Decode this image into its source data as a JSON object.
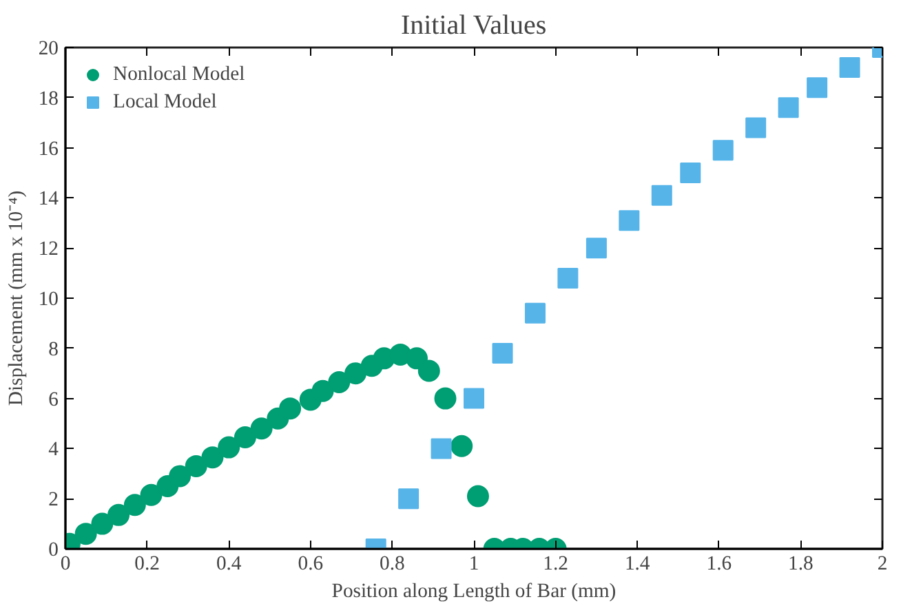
{
  "chart_data": {
    "type": "scatter",
    "title": "Initial Values",
    "xlabel": "Position along Length of Bar (mm)",
    "ylabel": "Displacement (mm x 10⁻⁴)",
    "series": [
      {
        "name": "Nonlocal Model",
        "color": "#009e73",
        "marker": "circle",
        "x": [
          0.01,
          0.05,
          0.09,
          0.13,
          0.17,
          0.21,
          0.25,
          0.28,
          0.32,
          0.36,
          0.4,
          0.44,
          0.48,
          0.52,
          0.55,
          0.6,
          0.63,
          0.67,
          0.71,
          0.75,
          0.78,
          0.82,
          0.86,
          0.89,
          0.93,
          0.97,
          1.01,
          1.05,
          1.09,
          1.12,
          1.16,
          1.2
        ],
        "values": [
          0.2,
          0.6,
          1.0,
          1.35,
          1.75,
          2.15,
          2.5,
          2.9,
          3.3,
          3.65,
          4.05,
          4.45,
          4.8,
          5.2,
          5.6,
          5.95,
          6.3,
          6.65,
          7.0,
          7.3,
          7.6,
          7.75,
          7.6,
          7.1,
          6.0,
          4.1,
          2.1,
          0,
          0,
          0,
          0,
          0
        ]
      },
      {
        "name": "Local Model",
        "color": "#56b4e9",
        "marker": "square",
        "x": [
          0.76,
          0.84,
          0.92,
          1.0,
          1.07,
          1.15,
          1.23,
          1.3,
          1.38,
          1.46,
          1.53,
          1.61,
          1.69,
          1.77,
          1.84,
          1.92,
          2.0
        ],
        "values": [
          0,
          2,
          4,
          6,
          7.8,
          9.4,
          10.8,
          12.0,
          13.1,
          14.1,
          15.0,
          15.9,
          16.8,
          17.6,
          18.4,
          19.2,
          20
        ]
      }
    ],
    "xlim": [
      0,
      2
    ],
    "ylim": [
      0,
      20
    ],
    "xticks": [
      0,
      0.2,
      0.4,
      0.6,
      0.8,
      1,
      1.2,
      1.4,
      1.6,
      1.8,
      2
    ],
    "yticks": [
      0,
      2,
      4,
      6,
      8,
      10,
      12,
      14,
      16,
      18,
      20
    ],
    "grid": false,
    "legend": "top left"
  }
}
